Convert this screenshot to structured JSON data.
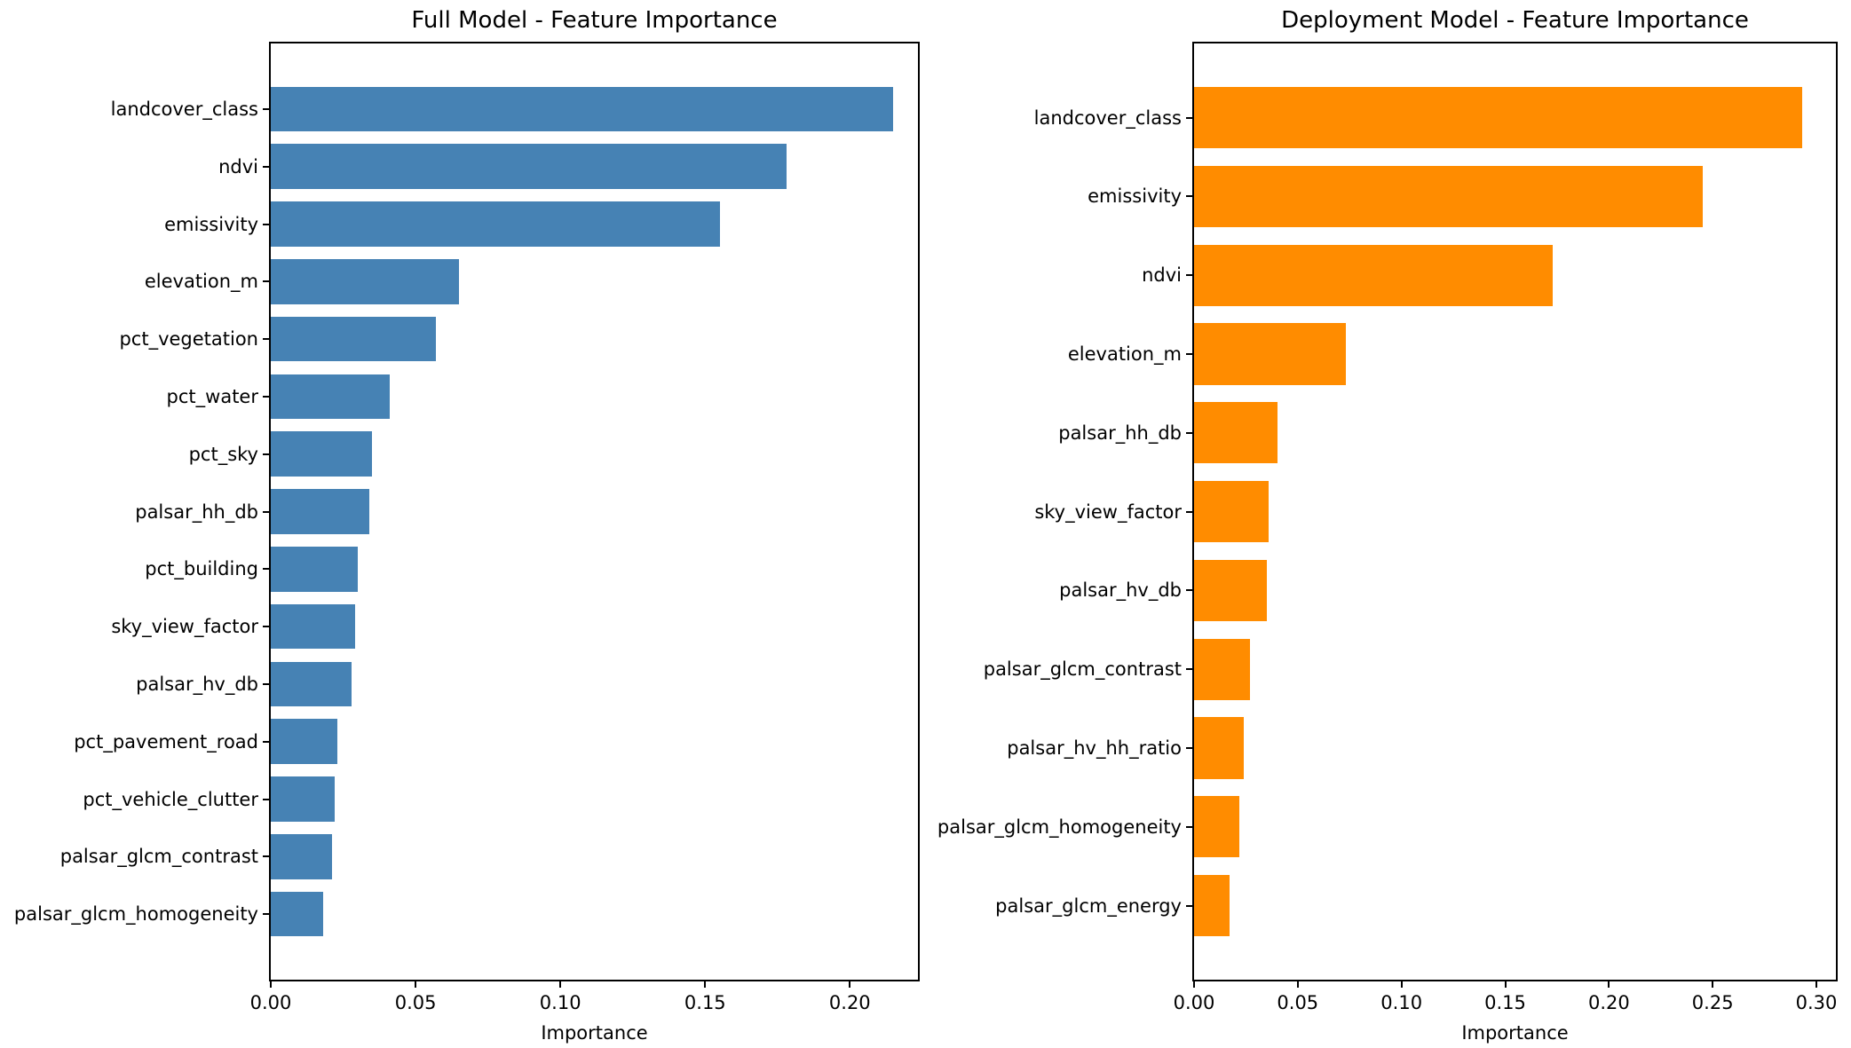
{
  "figure": {
    "background_color": "#ffffff",
    "text_color": "#000000",
    "spine_color": "#000000"
  },
  "chart_data": [
    {
      "type": "bar",
      "orientation": "horizontal",
      "title": "Full Model - Feature Importance",
      "xlabel": "Importance",
      "bar_color": "#4682B4",
      "grid": false,
      "legend_position": "none",
      "xlim": [
        0,
        0.2235
      ],
      "xtick_values": [
        0,
        0.05,
        0.1,
        0.15,
        0.2
      ],
      "xtick_labels": [
        "0.00",
        "0.05",
        "0.10",
        "0.15",
        "0.20"
      ],
      "categories": [
        "landcover_class",
        "ndvi",
        "emissivity",
        "elevation_m",
        "pct_vegetation",
        "pct_water",
        "pct_sky",
        "palsar_hh_db",
        "pct_building",
        "sky_view_factor",
        "palsar_hv_db",
        "pct_pavement_road",
        "pct_vehicle_clutter",
        "palsar_glcm_contrast",
        "palsar_glcm_homogeneity"
      ],
      "values": [
        0.215,
        0.178,
        0.155,
        0.065,
        0.057,
        0.041,
        0.035,
        0.034,
        0.03,
        0.029,
        0.028,
        0.023,
        0.022,
        0.021,
        0.018
      ]
    },
    {
      "type": "bar",
      "orientation": "horizontal",
      "title": "Deployment Model - Feature Importance",
      "xlabel": "Importance",
      "bar_color": "#FF8C00",
      "grid": false,
      "legend_position": "none",
      "xlim": [
        0,
        0.3094
      ],
      "xtick_values": [
        0,
        0.05,
        0.1,
        0.15,
        0.2,
        0.25,
        0.3
      ],
      "xtick_labels": [
        "0.00",
        "0.05",
        "0.10",
        "0.15",
        "0.20",
        "0.25",
        "0.30"
      ],
      "categories": [
        "landcover_class",
        "emissivity",
        "ndvi",
        "elevation_m",
        "palsar_hh_db",
        "sky_view_factor",
        "palsar_hv_db",
        "palsar_glcm_contrast",
        "palsar_hv_hh_ratio",
        "palsar_glcm_homogeneity",
        "palsar_glcm_energy"
      ],
      "values": [
        0.293,
        0.245,
        0.173,
        0.073,
        0.04,
        0.036,
        0.035,
        0.027,
        0.024,
        0.022,
        0.017
      ]
    }
  ]
}
